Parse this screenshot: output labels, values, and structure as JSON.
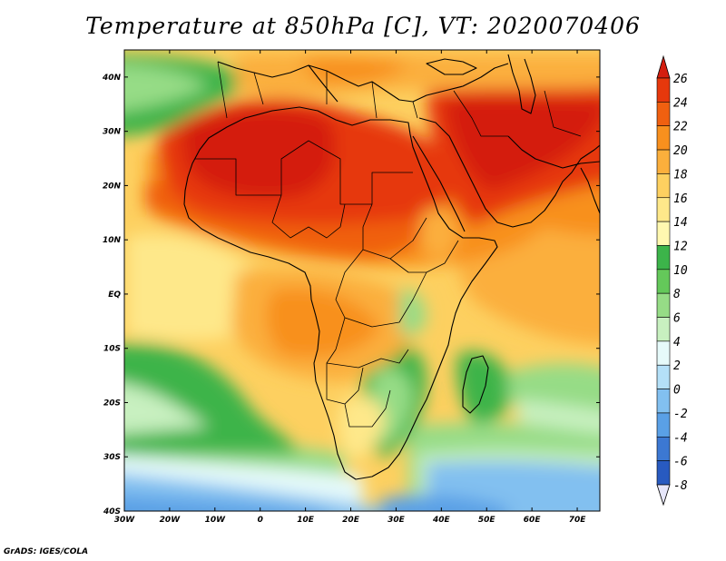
{
  "title": "Temperature at 850hPa [C], VT: 2020070406",
  "footer": "GrADS: IGES/COLA",
  "map": {
    "lon_range": [
      -30,
      75
    ],
    "lat_range": [
      -40,
      45
    ],
    "lon_ticks": [
      {
        "value": -30,
        "label": "30W"
      },
      {
        "value": -20,
        "label": "20W"
      },
      {
        "value": -10,
        "label": "10W"
      },
      {
        "value": 0,
        "label": "0"
      },
      {
        "value": 10,
        "label": "10E"
      },
      {
        "value": 20,
        "label": "20E"
      },
      {
        "value": 30,
        "label": "30E"
      },
      {
        "value": 40,
        "label": "40E"
      },
      {
        "value": 50,
        "label": "50E"
      },
      {
        "value": 60,
        "label": "60E"
      },
      {
        "value": 70,
        "label": "70E"
      }
    ],
    "lat_ticks": [
      {
        "value": 40,
        "label": "40N"
      },
      {
        "value": 30,
        "label": "30N"
      },
      {
        "value": 20,
        "label": "20N"
      },
      {
        "value": 10,
        "label": "10N"
      },
      {
        "value": 0,
        "label": "EQ"
      },
      {
        "value": -10,
        "label": "10S"
      },
      {
        "value": -20,
        "label": "20S"
      },
      {
        "value": -30,
        "label": "30S"
      },
      {
        "value": -40,
        "label": "40S"
      }
    ]
  },
  "colorbar": {
    "levels": [
      26,
      24,
      22,
      20,
      18,
      16,
      14,
      12,
      10,
      8,
      6,
      4,
      2,
      0,
      -2,
      -4,
      -6,
      -8
    ],
    "labels": [
      "26",
      "24",
      "22",
      "20",
      "18",
      "16",
      "14",
      "12",
      "10",
      "8",
      "6",
      "4",
      "2",
      "0",
      "-2",
      "-4",
      "-6",
      "-8"
    ],
    "colors_top_to_bottom": [
      "#d41e0f",
      "#e6380c",
      "#f06010",
      "#f8901e",
      "#fbaf3c",
      "#fdd060",
      "#fee88a",
      "#fff8b0",
      "#3cb44a",
      "#64c85a",
      "#96dc86",
      "#c8f0c0",
      "#e6fafa",
      "#b4e0f8",
      "#82c0f0",
      "#5aa0e6",
      "#3c78d2",
      "#285ac0",
      "#1e3ca0",
      "#10207a"
    ]
  },
  "layers": {
    "field_colors": {
      "hot": "#d41e0f",
      "very_warm": "#e6380c",
      "warm": "#f06010",
      "orange": "#f8901e",
      "light_orange": "#fbaf3c",
      "yellow": "#fdd060",
      "pale": "#fee88a",
      "green": "#3cb44a",
      "light_green": "#96dc86",
      "pale_green": "#c8f0c0",
      "cyan": "#e6fafa",
      "light_blue": "#82c0f0",
      "blue": "#5aa0e6"
    }
  }
}
